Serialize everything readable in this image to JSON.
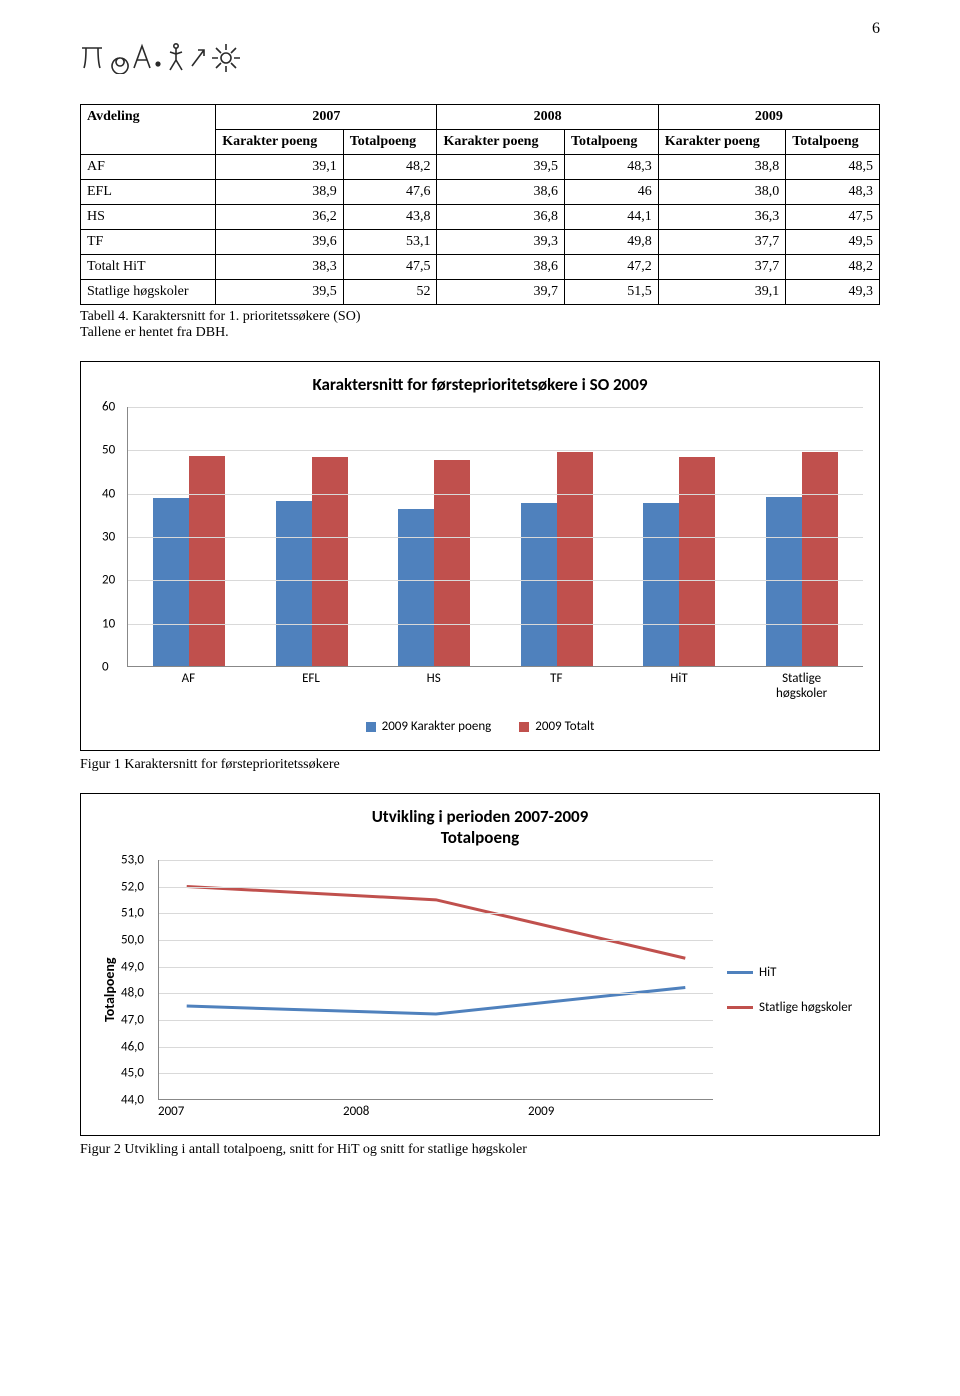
{
  "page_number": "6",
  "table": {
    "header_row1": [
      "Avdeling",
      "2007",
      "2008",
      "2009"
    ],
    "header_row2": [
      "",
      "Karakter poeng",
      "Totalpoeng",
      "Karakter poeng",
      "Totalpoeng",
      "Karakter poeng",
      "Totalpoeng"
    ],
    "header_row1_spans": [
      1,
      2,
      2,
      2
    ],
    "rows": [
      [
        "AF",
        "39,1",
        "48,2",
        "39,5",
        "48,3",
        "38,8",
        "48,5"
      ],
      [
        "EFL",
        "38,9",
        "47,6",
        "38,6",
        "46",
        "38,0",
        "48,3"
      ],
      [
        "HS",
        "36,2",
        "43,8",
        "36,8",
        "44,1",
        "36,3",
        "47,5"
      ],
      [
        "TF",
        "39,6",
        "53,1",
        "39,3",
        "49,8",
        "37,7",
        "49,5"
      ],
      [
        "Totalt HiT",
        "38,3",
        "47,5",
        "38,6",
        "47,2",
        "37,7",
        "48,2"
      ],
      [
        "Statlige høgskoler",
        "39,5",
        "52",
        "39,7",
        "51,5",
        "39,1",
        "49,3"
      ]
    ],
    "caption_a": "Tabell 4. Karaktersnitt for 1. prioritetssøkere (SO)",
    "caption_b": "Tallene er hentet fra DBH."
  },
  "bar_chart": {
    "type": "bar",
    "title": "Karaktersnitt for førsteprioritetsøkere i SO 2009",
    "y_min": 0,
    "y_max": 60,
    "y_ticks": [
      0,
      10,
      20,
      30,
      40,
      50,
      60
    ],
    "grid_color": "#d9d9d9",
    "axis_color": "#888888",
    "categories": [
      "AF",
      "EFL",
      "HS",
      "TF",
      "HiT",
      "Statlige høgskoler"
    ],
    "series": [
      {
        "name": "2009 Karakter poeng",
        "color": "#4f81bd",
        "values": [
          38.8,
          38.0,
          36.3,
          37.7,
          37.7,
          39.1
        ]
      },
      {
        "name": "2009 Totalt",
        "color": "#c0504d",
        "values": [
          48.5,
          48.3,
          47.5,
          49.5,
          48.2,
          49.3
        ]
      }
    ],
    "font_family": "Calibri, Arial, sans-serif",
    "label_fontsize": 13
  },
  "fig1_caption": "Figur 1 Karaktersnitt for førsteprioritetssøkere",
  "line_chart": {
    "type": "line",
    "title": "Utvikling i perioden 2007-2009 Totalpoeng",
    "y_axis_title": "Totalpoeng",
    "y_min": 44.0,
    "y_max": 53.0,
    "y_ticks": [
      "44,0",
      "45,0",
      "46,0",
      "47,0",
      "48,0",
      "49,0",
      "50,0",
      "51,0",
      "52,0",
      "53,0"
    ],
    "y_tick_values": [
      44,
      45,
      46,
      47,
      48,
      49,
      50,
      51,
      52,
      53
    ],
    "grid_color": "#d9d9d9",
    "axis_color": "#888888",
    "x_labels": [
      "2007",
      "2008",
      "2009"
    ],
    "series": [
      {
        "name": "HiT",
        "color": "#4f81bd",
        "values": [
          47.5,
          47.2,
          48.2
        ],
        "line_width": 3
      },
      {
        "name": "Statlige høgskoler",
        "color": "#c0504d",
        "values": [
          52.0,
          51.5,
          49.3
        ],
        "line_width": 3
      }
    ],
    "font_family": "Calibri, Arial, sans-serif",
    "label_fontsize": 13
  },
  "fig2_caption": "Figur 2 Utvikling i antall totalpoeng, snitt for HiT og snitt for statlige høgskoler"
}
